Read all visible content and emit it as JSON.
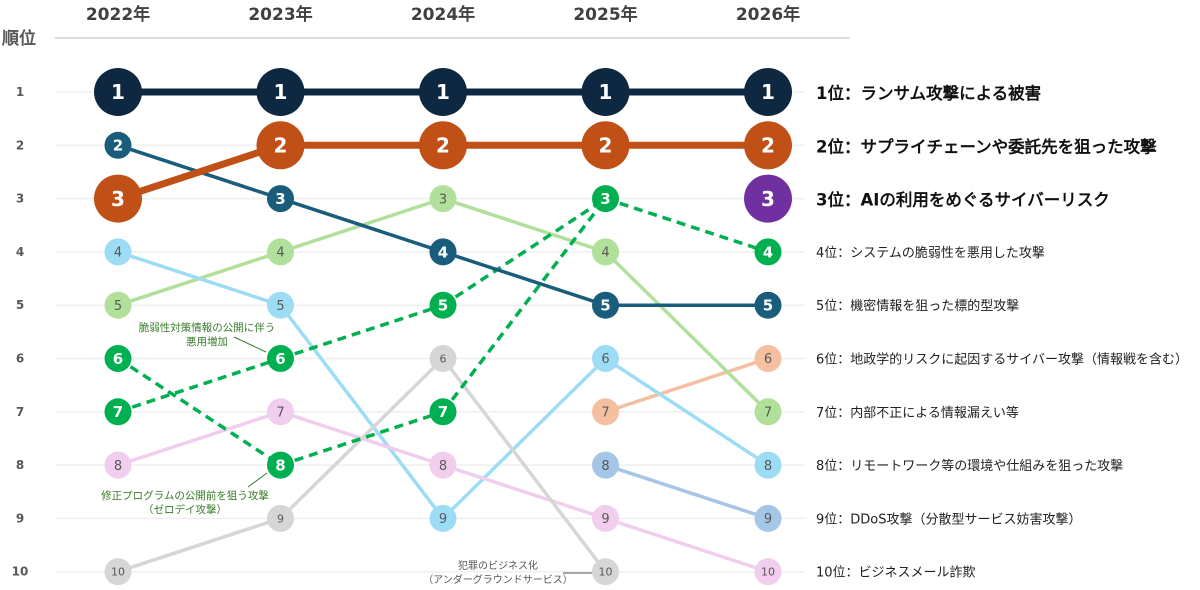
{
  "chart_data": {
    "type": "bump",
    "title": "",
    "ylabel": "順位",
    "x": [
      "2022年",
      "2023年",
      "2024年",
      "2025年",
      "2026年"
    ],
    "rank_ticks": [
      "1",
      "2",
      "3",
      "4",
      "5",
      "6",
      "7",
      "8",
      "9",
      "10"
    ],
    "ylim": [
      1,
      10
    ],
    "grid": true,
    "series": [
      {
        "name": "1位：ランサム攻撃による被害",
        "ranks": [
          1,
          1,
          1,
          1,
          1
        ],
        "color": "#0d2840",
        "text_color": "#ffffff",
        "emphasis": true,
        "dashed": false
      },
      {
        "name": "2位：サプライチェーンや委託先を狙った攻撃",
        "ranks": [
          3,
          2,
          2,
          2,
          2
        ],
        "color": "#c05016",
        "text_color": "#ffffff",
        "emphasis": true,
        "dashed": false
      },
      {
        "name": "3位：AIの利用をめぐるサイバーリスク",
        "ranks": [
          null,
          null,
          null,
          null,
          3
        ],
        "color": "#7030a0",
        "text_color": "#ffffff",
        "emphasis": true,
        "dashed": false
      },
      {
        "name": "4位：システムの脆弱性を悪用した攻撃",
        "ranks": [
          7,
          6,
          5,
          3,
          4
        ],
        "color": "#00b050",
        "text_color": "#ffffff",
        "emphasis": false,
        "dashed": true,
        "annotation": "脆弱性対策情報の公開に伴う悪用増加"
      },
      {
        "name": "",
        "ranks": [
          6,
          8,
          7,
          3,
          4
        ],
        "color": "#00b050",
        "text_color": "#ffffff",
        "emphasis": false,
        "dashed": true,
        "annotation": "修正プログラムの公開前を狙う攻撃（ゼロデイ攻撃）"
      },
      {
        "name": "5位：機密情報を狙った標的型攻撃",
        "ranks": [
          2,
          3,
          4,
          5,
          5
        ],
        "color": "#195c7c",
        "text_color": "#ffffff",
        "emphasis": false,
        "dashed": false
      },
      {
        "name": "6位：地政学的リスクに起因するサイバー攻撃（情報戦を含む）",
        "ranks": [
          null,
          null,
          null,
          7,
          6
        ],
        "color": "#f5c0a2",
        "text_color": "#595959",
        "emphasis": false,
        "dashed": false
      },
      {
        "name": "7位：内部不正による情報漏えい等",
        "ranks": [
          5,
          4,
          3,
          4,
          7
        ],
        "color": "#b0e09a",
        "text_color": "#595959",
        "emphasis": false,
        "dashed": false
      },
      {
        "name": "8位：リモートワーク等の環境や仕組みを狙った攻撃",
        "ranks": [
          4,
          5,
          9,
          6,
          8
        ],
        "color": "#9ddcf5",
        "text_color": "#595959",
        "emphasis": false,
        "dashed": false
      },
      {
        "name": "9位：DDoS攻撃（分散型サービス妨害攻撃）",
        "ranks": [
          null,
          null,
          null,
          8,
          9
        ],
        "color": "#a6c6e8",
        "text_color": "#595959",
        "emphasis": false,
        "dashed": false
      },
      {
        "name": "10位：ビジネスメール詐欺",
        "ranks": [
          8,
          7,
          8,
          9,
          10
        ],
        "color": "#f1cdee",
        "text_color": "#595959",
        "emphasis": false,
        "dashed": false
      },
      {
        "name": "",
        "ranks": [
          10,
          9,
          6,
          10,
          null
        ],
        "color": "#d6d6d6",
        "text_color": "#595959",
        "emphasis": false,
        "dashed": false,
        "annotation": "犯罪のビジネス化（アンダーグラウンドサービス）"
      }
    ],
    "annotations": {
      "vuln_info_1": "脆弱性対策情報の公開に伴う",
      "vuln_info_2": "悪用増加",
      "zero_day_1": "修正プログラムの公開前を狙う攻撃",
      "zero_day_2": "（ゼロデイ攻撃）",
      "crime_1": "犯罪のビジネス化",
      "crime_2": "（アンダーグラウンドサービス）"
    },
    "end_labels": [
      "1位：ランサム攻撃による被害",
      "2位：サプライチェーンや委託先を狙った攻撃",
      "3位：AIの利用をめぐるサイバーリスク",
      "4位：システムの脆弱性を悪用した攻撃",
      "5位：機密情報を狙った標的型攻撃",
      "6位：地政学的リスクに起因するサイバー攻撃（情報戦を含む）",
      "7位：内部不正による情報漏えい等",
      "8位：リモートワーク等の環境や仕組みを狙った攻撃",
      "9位：DDoS攻撃（分散型サービス妨害攻撃）",
      "10位：ビジネスメール詐欺"
    ]
  }
}
